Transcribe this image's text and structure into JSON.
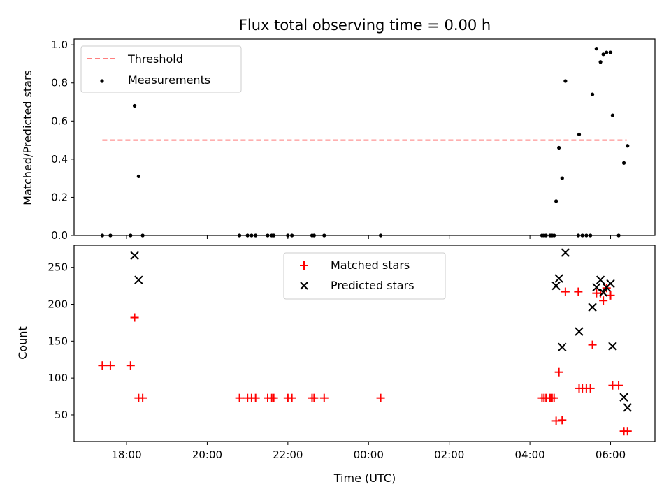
{
  "title": "Flux total observing time = 0.00 h",
  "colors": {
    "threshold": "#ff7f7f",
    "measurements": "#000000",
    "matched": "#ff0000",
    "predicted": "#000000"
  },
  "chart_data": [
    {
      "type": "scatter",
      "ylabel": "Matched/Predicted stars",
      "xlabel": "",
      "ylim": [
        0,
        1.03
      ],
      "yticks": [
        "0.0",
        "0.2",
        "0.4",
        "0.6",
        "0.8",
        "1.0"
      ],
      "ytick_values": [
        0,
        0.2,
        0.4,
        0.6,
        0.8,
        1.0
      ],
      "xlim_hours": [
        16.7,
        31.1
      ],
      "legend": {
        "placement": "top-left",
        "entries": [
          "Threshold",
          "Measurements"
        ]
      },
      "threshold": {
        "name": "Threshold",
        "y": 0.5,
        "x_range_hours": [
          17.4,
          30.4
        ]
      },
      "series": [
        {
          "name": "Measurements",
          "points": [
            [
              17.4,
              0
            ],
            [
              17.6,
              0
            ],
            [
              18.1,
              0
            ],
            [
              18.2,
              0.68
            ],
            [
              18.3,
              0.31
            ],
            [
              18.4,
              0
            ],
            [
              20.8,
              0
            ],
            [
              21.0,
              0
            ],
            [
              21.1,
              0
            ],
            [
              21.2,
              0
            ],
            [
              21.5,
              0
            ],
            [
              21.6,
              0
            ],
            [
              21.65,
              0
            ],
            [
              22.0,
              0
            ],
            [
              22.1,
              0
            ],
            [
              22.6,
              0
            ],
            [
              22.65,
              0
            ],
            [
              22.9,
              0
            ],
            [
              24.3,
              0
            ],
            [
              28.3,
              0
            ],
            [
              28.35,
              0
            ],
            [
              28.4,
              0
            ],
            [
              28.5,
              0
            ],
            [
              28.55,
              0
            ],
            [
              28.6,
              0
            ],
            [
              28.65,
              0.18
            ],
            [
              28.72,
              0.46
            ],
            [
              28.8,
              0.3
            ],
            [
              28.88,
              0.81
            ],
            [
              29.2,
              0
            ],
            [
              29.22,
              0.53
            ],
            [
              29.3,
              0
            ],
            [
              29.4,
              0
            ],
            [
              29.5,
              0
            ],
            [
              29.55,
              0.74
            ],
            [
              29.65,
              0.98
            ],
            [
              29.75,
              0.91
            ],
            [
              29.82,
              0.95
            ],
            [
              29.9,
              0.96
            ],
            [
              30.0,
              0.96
            ],
            [
              30.05,
              0.63
            ],
            [
              30.2,
              0
            ],
            [
              30.33,
              0.38
            ],
            [
              30.42,
              0.47
            ]
          ]
        }
      ]
    },
    {
      "type": "scatter",
      "ylabel": "Count",
      "xlabel": "Time (UTC)",
      "ylim": [
        14,
        280
      ],
      "yticks": [
        "50",
        "100",
        "150",
        "200",
        "250"
      ],
      "ytick_values": [
        50,
        100,
        150,
        200,
        250
      ],
      "xlim_hours": [
        16.7,
        31.1
      ],
      "xticks": [
        "18:00",
        "20:00",
        "22:00",
        "00:00",
        "02:00",
        "04:00",
        "06:00"
      ],
      "xtick_hours": [
        18,
        20,
        22,
        24,
        26,
        28,
        30
      ],
      "legend": {
        "placement": "upper-center",
        "entries": [
          "Matched stars",
          "Predicted stars"
        ]
      },
      "series": [
        {
          "name": "Matched stars",
          "marker": "plus",
          "points": [
            [
              17.4,
              117
            ],
            [
              17.6,
              117
            ],
            [
              18.1,
              117
            ],
            [
              18.2,
              182
            ],
            [
              18.3,
              73
            ],
            [
              18.4,
              73
            ],
            [
              20.8,
              73
            ],
            [
              21.0,
              73
            ],
            [
              21.1,
              73
            ],
            [
              21.2,
              73
            ],
            [
              21.5,
              73
            ],
            [
              21.6,
              73
            ],
            [
              21.65,
              73
            ],
            [
              22.0,
              73
            ],
            [
              22.1,
              73
            ],
            [
              22.6,
              73
            ],
            [
              22.65,
              73
            ],
            [
              22.9,
              73
            ],
            [
              24.3,
              73
            ],
            [
              28.3,
              73
            ],
            [
              28.35,
              73
            ],
            [
              28.4,
              73
            ],
            [
              28.5,
              73
            ],
            [
              28.55,
              73
            ],
            [
              28.6,
              73
            ],
            [
              28.65,
              42
            ],
            [
              28.72,
              108
            ],
            [
              28.8,
              43
            ],
            [
              28.88,
              217
            ],
            [
              29.2,
              217
            ],
            [
              29.22,
              86
            ],
            [
              29.3,
              86
            ],
            [
              29.4,
              86
            ],
            [
              29.5,
              86
            ],
            [
              29.55,
              145
            ],
            [
              29.65,
              215
            ],
            [
              29.75,
              215
            ],
            [
              29.82,
              205
            ],
            [
              29.9,
              222
            ],
            [
              30.0,
              212
            ],
            [
              30.05,
              90
            ],
            [
              30.2,
              90
            ],
            [
              30.33,
              28
            ],
            [
              30.42,
              28
            ]
          ]
        },
        {
          "name": "Predicted stars",
          "marker": "x",
          "points": [
            [
              18.2,
              266
            ],
            [
              18.3,
              233
            ],
            [
              28.65,
              225
            ],
            [
              28.72,
              235
            ],
            [
              28.8,
              142
            ],
            [
              28.88,
              270
            ],
            [
              29.22,
              163
            ],
            [
              29.55,
              196
            ],
            [
              29.65,
              223
            ],
            [
              29.75,
              233
            ],
            [
              29.82,
              216
            ],
            [
              29.9,
              223
            ],
            [
              30.0,
              228
            ],
            [
              30.05,
              143
            ],
            [
              30.33,
              74
            ],
            [
              30.42,
              60
            ]
          ]
        }
      ]
    }
  ]
}
